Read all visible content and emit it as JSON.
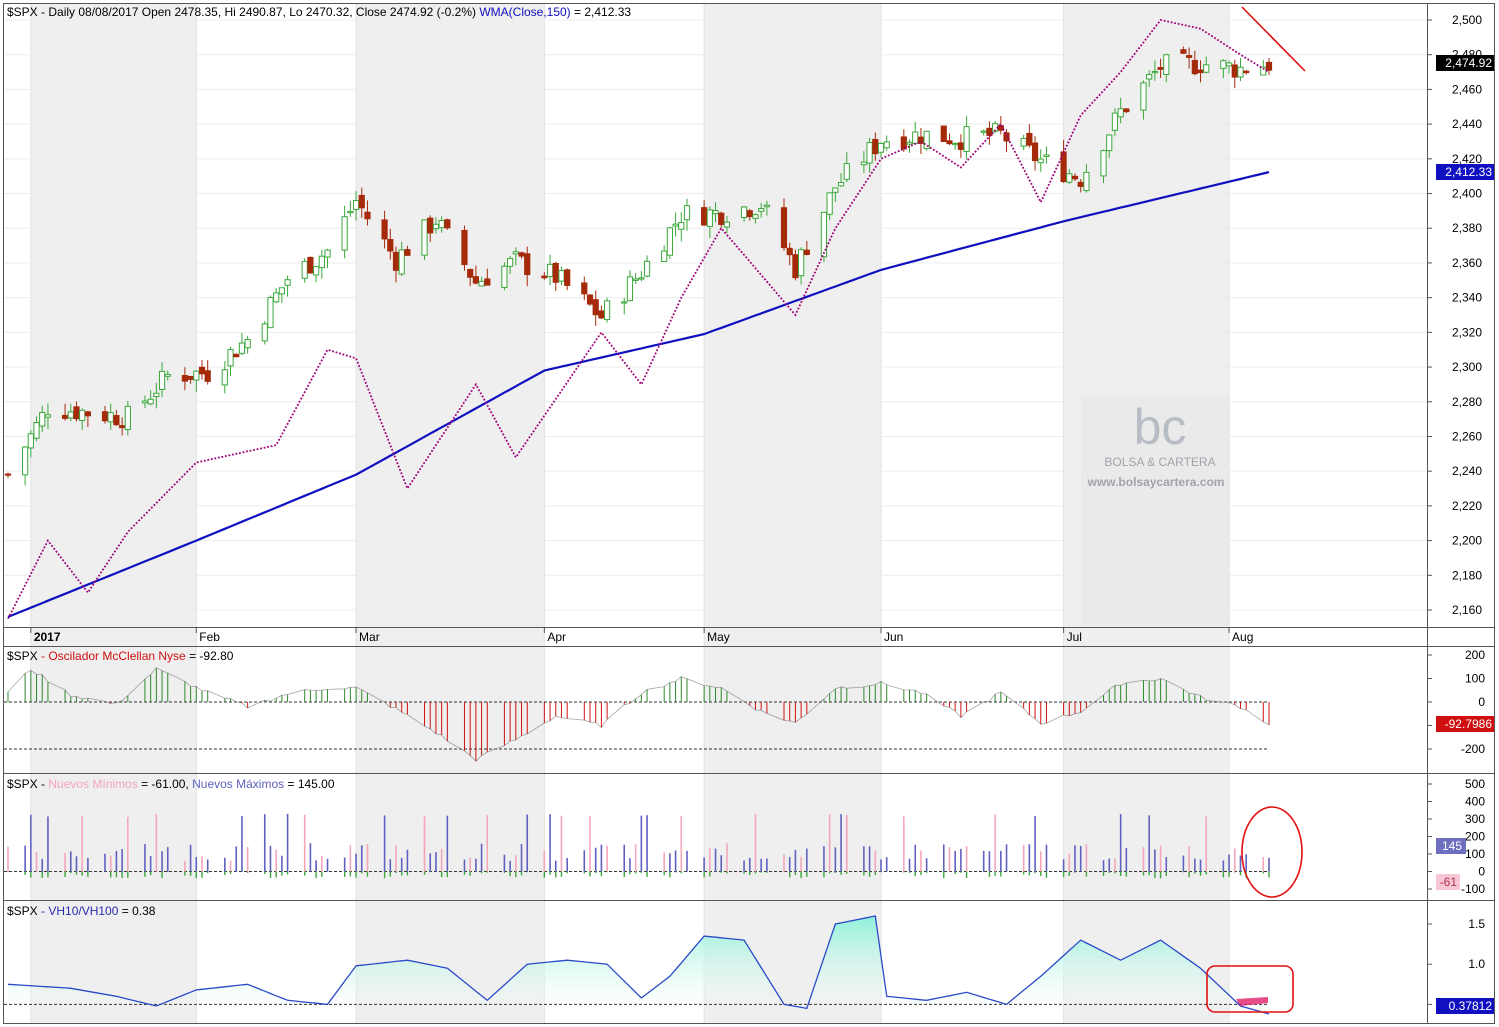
{
  "colors": {
    "up": "#3aa83a",
    "down": "#a52a0a",
    "wma": "#1010c0",
    "mcclellan_line": "#a00078",
    "osc_pos": "#2a8a2a",
    "osc_neg": "#d01010",
    "new_lows": "#f4a6b8",
    "new_highs": "#6060c0",
    "vh_line": "#2a4ac8",
    "vh_fill_top": "#8ff0d8",
    "vh_neg": "#e0206c",
    "shade": "#efefef",
    "annotation": "#e01010"
  },
  "panels": {
    "price": {
      "header_symbol": "$SPX",
      "header_text": " - Daily 08/08/2017 Open 2478.35, Hi 2490.87, Lo 2470.32, Close 2474.92 (-0.2%) ",
      "header_wma": "WMA(Close,150)",
      "header_wma_value": " = 2,412.33",
      "last_close_tag": "2,474.92",
      "wma_tag": "2,412.33",
      "y_ticks": [
        "2,500",
        "2,480",
        "2,460",
        "2,440",
        "2,420",
        "2,400",
        "2,380",
        "2,360",
        "2,340",
        "2,320",
        "2,300",
        "2,280",
        "2,260",
        "2,240",
        "2,220",
        "2,200",
        "2,180",
        "2,160"
      ],
      "months": [
        "2017",
        "Feb",
        "Mar",
        "Apr",
        "May",
        "Jun",
        "Jul",
        "Aug"
      ]
    },
    "mcclellan": {
      "header_symbol": "$SPX",
      "header_name": " - Oscilador McClellan Nyse",
      "header_value": " = -92.80",
      "tag": "-92.7986",
      "y_ticks": [
        "200",
        "100",
        "0",
        "-100",
        "-200"
      ]
    },
    "newhl": {
      "header_symbol": "$SPX",
      "header_sep": " - ",
      "lows_label": "Nuevos Mínimos",
      "lows_value": " = -61.00, ",
      "highs_label": "Nuevos Máximos",
      "highs_value": " = 145.00",
      "tag_highs": "145",
      "tag_lows": "-61",
      "y_ticks": [
        "500",
        "400",
        "300",
        "200",
        "100",
        "0",
        "-100"
      ]
    },
    "vh": {
      "header_symbol": "$SPX",
      "header_name": " - VH10/VH100",
      "header_value": " = 0.38",
      "tag": "0.37812",
      "y_ticks": [
        "1.5",
        "1.0",
        "0.5"
      ]
    }
  },
  "watermark": {
    "logo": "bc",
    "name": "BOLSA & CARTERA",
    "url": "www.bolsaycartera.com"
  },
  "chart_data": [
    {
      "type": "candlestick",
      "title": "$SPX - Daily 08/08/2017",
      "x_range": [
        "2016-12-30",
        "2017-08-08"
      ],
      "ylim": [
        2150,
        2505
      ],
      "ohlc_last": {
        "date": "2017-08-08",
        "open": 2478.35,
        "high": 2490.87,
        "low": 2470.32,
        "close": 2474.92,
        "change_pct": -0.2
      },
      "close_anchor_points": [
        [
          "2016-12-30",
          2238
        ],
        [
          "2017-01-06",
          2277
        ],
        [
          "2017-01-13",
          2274
        ],
        [
          "2017-01-20",
          2271
        ],
        [
          "2017-01-27",
          2295
        ],
        [
          "2017-02-03",
          2297
        ],
        [
          "2017-02-10",
          2316
        ],
        [
          "2017-02-17",
          2351
        ],
        [
          "2017-02-24",
          2367
        ],
        [
          "2017-03-01",
          2396
        ],
        [
          "2017-03-08",
          2362
        ],
        [
          "2017-03-15",
          2385
        ],
        [
          "2017-03-22",
          2349
        ],
        [
          "2017-03-29",
          2361
        ],
        [
          "2017-04-05",
          2352
        ],
        [
          "2017-04-13",
          2329
        ],
        [
          "2017-04-20",
          2355
        ],
        [
          "2017-04-27",
          2388
        ],
        [
          "2017-05-04",
          2389
        ],
        [
          "2017-05-11",
          2394
        ],
        [
          "2017-05-17",
          2357
        ],
        [
          "2017-05-24",
          2404
        ],
        [
          "2017-06-01",
          2431
        ],
        [
          "2017-06-08",
          2434
        ],
        [
          "2017-06-15",
          2432
        ],
        [
          "2017-06-22",
          2434
        ],
        [
          "2017-06-29",
          2419
        ],
        [
          "2017-07-06",
          2409
        ],
        [
          "2017-07-13",
          2447
        ],
        [
          "2017-07-20",
          2473
        ],
        [
          "2017-07-27",
          2475
        ],
        [
          "2017-08-03",
          2472
        ],
        [
          "2017-08-08",
          2474.92
        ]
      ],
      "series": [
        {
          "name": "WMA(Close,150)",
          "points": [
            [
              "2016-12-30",
              2156
            ],
            [
              "2017-02-01",
              2200
            ],
            [
              "2017-03-01",
              2238
            ],
            [
              "2017-04-03",
              2298
            ],
            [
              "2017-05-01",
              2319
            ],
            [
              "2017-06-01",
              2356
            ],
            [
              "2017-07-03",
              2384
            ],
            [
              "2017-08-08",
              2412.33
            ]
          ]
        },
        {
          "name": "Oscilador McClellan Nyse (overlay)",
          "points": [
            [
              "2016-12-30",
              2155
            ],
            [
              "2017-01-06",
              2200
            ],
            [
              "2017-01-13",
              2170
            ],
            [
              "2017-01-20",
              2205
            ],
            [
              "2017-02-01",
              2245
            ],
            [
              "2017-02-15",
              2255
            ],
            [
              "2017-02-24",
              2310
            ],
            [
              "2017-03-01",
              2305
            ],
            [
              "2017-03-10",
              2230
            ],
            [
              "2017-03-22",
              2290
            ],
            [
              "2017-03-29",
              2248
            ],
            [
              "2017-04-13",
              2320
            ],
            [
              "2017-04-20",
              2290
            ],
            [
              "2017-04-27",
              2340
            ],
            [
              "2017-05-04",
              2380
            ],
            [
              "2017-05-17",
              2330
            ],
            [
              "2017-05-24",
              2380
            ],
            [
              "2017-06-01",
              2420
            ],
            [
              "2017-06-08",
              2430
            ],
            [
              "2017-06-15",
              2415
            ],
            [
              "2017-06-22",
              2440
            ],
            [
              "2017-06-29",
              2395
            ],
            [
              "2017-07-06",
              2445
            ],
            [
              "2017-07-13",
              2470
            ],
            [
              "2017-07-20",
              2500
            ],
            [
              "2017-07-27",
              2495
            ],
            [
              "2017-08-03",
              2480
            ],
            [
              "2017-08-08",
              2470
            ]
          ]
        }
      ]
    },
    {
      "type": "bar",
      "title": "Oscilador McClellan Nyse",
      "ylim": [
        -270,
        230
      ],
      "reference_line": -200,
      "last_value": -92.7986,
      "anchor_points": [
        [
          "2016-12-30",
          40
        ],
        [
          "2017-01-03",
          140
        ],
        [
          "2017-01-10",
          30
        ],
        [
          "2017-01-18",
          -10
        ],
        [
          "2017-01-25",
          140
        ],
        [
          "2017-02-03",
          40
        ],
        [
          "2017-02-10",
          -20
        ],
        [
          "2017-02-17",
          35
        ],
        [
          "2017-02-24",
          60
        ],
        [
          "2017-03-01",
          60
        ],
        [
          "2017-03-08",
          -30
        ],
        [
          "2017-03-15",
          -130
        ],
        [
          "2017-03-22",
          -245
        ],
        [
          "2017-03-29",
          -160
        ],
        [
          "2017-04-05",
          -60
        ],
        [
          "2017-04-13",
          -100
        ],
        [
          "2017-04-20",
          40
        ],
        [
          "2017-04-27",
          100
        ],
        [
          "2017-05-04",
          60
        ],
        [
          "2017-05-11",
          -40
        ],
        [
          "2017-05-17",
          -90
        ],
        [
          "2017-05-24",
          60
        ],
        [
          "2017-06-01",
          80
        ],
        [
          "2017-06-08",
          40
        ],
        [
          "2017-06-15",
          -60
        ],
        [
          "2017-06-22",
          40
        ],
        [
          "2017-06-29",
          -90
        ],
        [
          "2017-07-06",
          -40
        ],
        [
          "2017-07-13",
          80
        ],
        [
          "2017-07-20",
          100
        ],
        [
          "2017-07-27",
          20
        ],
        [
          "2017-08-03",
          -20
        ],
        [
          "2017-08-08",
          -92.8
        ]
      ]
    },
    {
      "type": "bar",
      "title": "Nuevos Mínimos / Nuevos Máximos",
      "ylim": [
        -130,
        520
      ],
      "series": [
        {
          "name": "Nuevos Máximos",
          "last_value": 145.0
        },
        {
          "name": "Nuevos Mínimos",
          "last_value": -61.0
        }
      ]
    },
    {
      "type": "area",
      "title": "VH10/VH100",
      "ylim": [
        0.3,
        1.65
      ],
      "reference_line": 0.5,
      "last_value": 0.37812,
      "anchor_points": [
        [
          "2016-12-30",
          0.75
        ],
        [
          "2017-01-10",
          0.7
        ],
        [
          "2017-01-18",
          0.6
        ],
        [
          "2017-01-25",
          0.48
        ],
        [
          "2017-02-01",
          0.68
        ],
        [
          "2017-02-10",
          0.75
        ],
        [
          "2017-02-17",
          0.55
        ],
        [
          "2017-02-24",
          0.5
        ],
        [
          "2017-03-01",
          0.98
        ],
        [
          "2017-03-10",
          1.05
        ],
        [
          "2017-03-17",
          0.95
        ],
        [
          "2017-03-24",
          0.55
        ],
        [
          "2017-03-31",
          1.0
        ],
        [
          "2017-04-07",
          1.05
        ],
        [
          "2017-04-14",
          1.0
        ],
        [
          "2017-04-20",
          0.58
        ],
        [
          "2017-04-25",
          0.85
        ],
        [
          "2017-05-01",
          1.35
        ],
        [
          "2017-05-08",
          1.3
        ],
        [
          "2017-05-15",
          0.5
        ],
        [
          "2017-05-19",
          0.45
        ],
        [
          "2017-05-24",
          1.5
        ],
        [
          "2017-05-31",
          1.6
        ],
        [
          "2017-06-02",
          0.6
        ],
        [
          "2017-06-09",
          0.55
        ],
        [
          "2017-06-16",
          0.65
        ],
        [
          "2017-06-23",
          0.5
        ],
        [
          "2017-06-29",
          0.85
        ],
        [
          "2017-07-06",
          1.3
        ],
        [
          "2017-07-13",
          1.05
        ],
        [
          "2017-07-20",
          1.3
        ],
        [
          "2017-07-27",
          0.95
        ],
        [
          "2017-08-03",
          0.48
        ],
        [
          "2017-08-08",
          0.38
        ]
      ]
    }
  ]
}
